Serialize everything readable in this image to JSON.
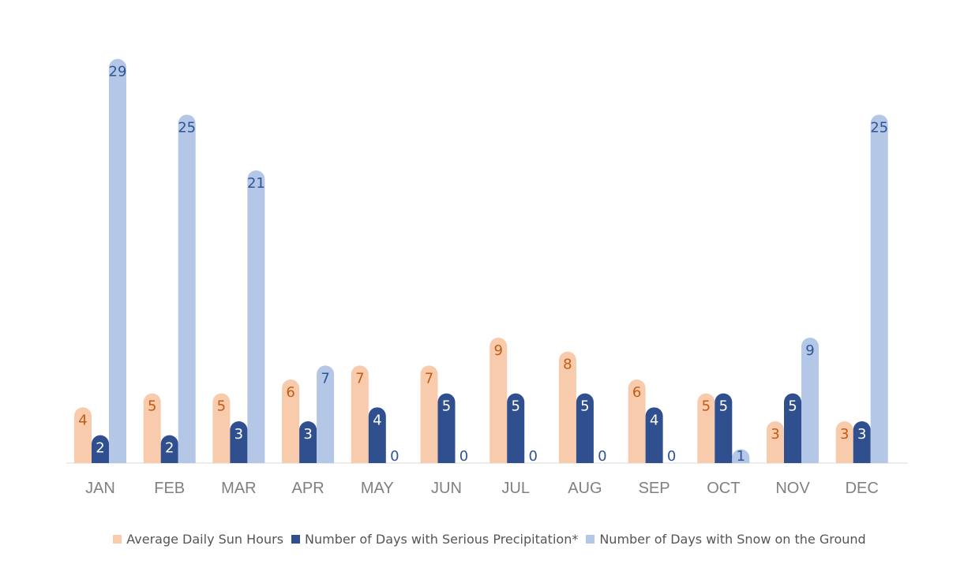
{
  "chart_data": {
    "type": "bar",
    "title": "",
    "xlabel": "",
    "ylabel": "",
    "ylim": [
      0,
      30
    ],
    "grid": false,
    "legend_position": "bottom",
    "categories": [
      "JAN",
      "FEB",
      "MAR",
      "APR",
      "MAY",
      "JUN",
      "JUL",
      "AUG",
      "SEP",
      "OCT",
      "NOV",
      "DEC"
    ],
    "series": [
      {
        "name": "Average Daily Sun Hours",
        "color": "#F8CBAD",
        "label_color": "#C55A11",
        "values": [
          4,
          5,
          5,
          6,
          7,
          7,
          9,
          8,
          6,
          5,
          3,
          3
        ]
      },
      {
        "name": "Number of Days with Serious Precipitation*",
        "color": "#2F4F8F",
        "label_color": "#FFFFFF",
        "values": [
          2,
          2,
          3,
          3,
          4,
          5,
          5,
          5,
          4,
          5,
          5,
          3
        ]
      },
      {
        "name": "Number of Days with Snow on the Ground",
        "color": "#B4C7E7",
        "label_color": "#2F5597",
        "values": [
          29,
          25,
          21,
          7,
          0,
          0,
          0,
          0,
          0,
          1,
          9,
          25
        ]
      }
    ]
  }
}
